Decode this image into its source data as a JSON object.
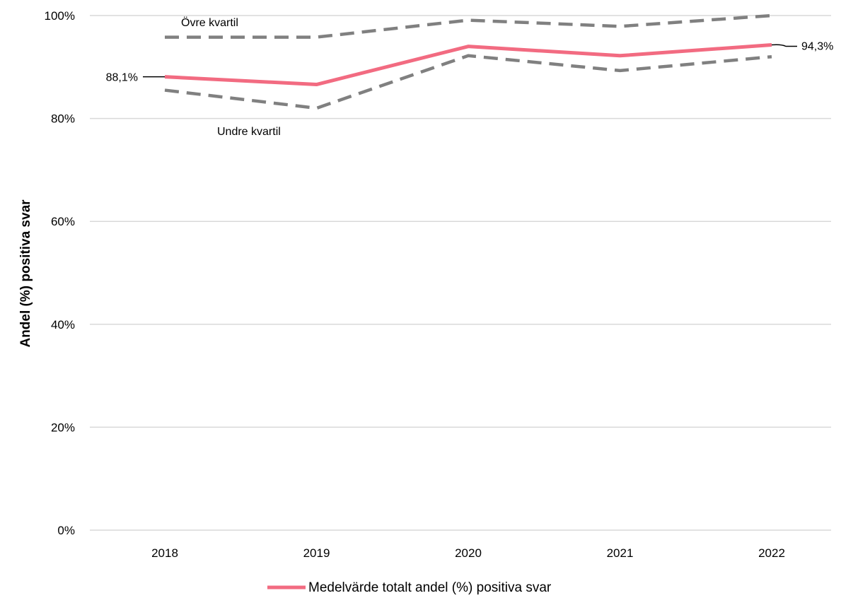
{
  "chart_data": {
    "type": "line",
    "categories": [
      "2018",
      "2019",
      "2020",
      "2021",
      "2022"
    ],
    "ylabel": "Andel (%) positiva svar",
    "ylim": [
      0,
      100
    ],
    "yticks": [
      "0%",
      "20%",
      "40%",
      "60%",
      "80%",
      "100%"
    ],
    "grid": true,
    "legend_position": "bottom",
    "series": [
      {
        "name": "Medelvärde totalt andel (%) positiva svar",
        "values": [
          88.1,
          86.6,
          94.0,
          92.2,
          94.3
        ],
        "color": "#f26b81",
        "style": "solid",
        "in_legend": true,
        "data_labels": {
          "first": "88,1%",
          "last": "94,3%"
        }
      },
      {
        "name": "Övre kvartil",
        "values": [
          95.8,
          95.8,
          99.1,
          97.9,
          100.0
        ],
        "color": "#808080",
        "style": "dashed",
        "in_legend": false
      },
      {
        "name": "Undre kvartil",
        "values": [
          85.5,
          82.0,
          92.2,
          89.3,
          92.0
        ],
        "color": "#808080",
        "style": "dashed",
        "in_legend": false
      }
    ]
  }
}
